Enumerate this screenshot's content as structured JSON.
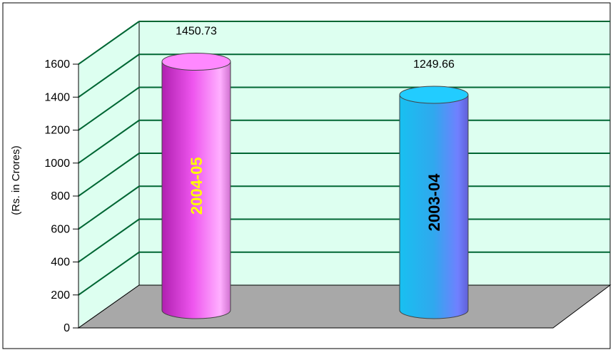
{
  "chart_data": {
    "type": "bar",
    "categories": [
      "2004-05",
      "2003-04"
    ],
    "values": [
      1450.73,
      1249.66
    ],
    "value_labels": [
      "1450.73",
      "1249.66"
    ],
    "ylabel": "(Rs. in Crores)",
    "yticks": [
      "0",
      "200",
      "400",
      "600",
      "800",
      "1000",
      "1200",
      "1400",
      "1600"
    ],
    "ylim": [
      0,
      1600
    ],
    "grid": true,
    "legend": "none",
    "style": "3d-cylinder",
    "colors": {
      "bar1": "#ee55ee",
      "bar2": "#22bbee",
      "category_label_bar1": "#ffff00",
      "category_label_bar2": "#000000",
      "back_wall": "#ddfff0",
      "floor": "#a8a8a8",
      "grid_line": "#006633"
    }
  }
}
